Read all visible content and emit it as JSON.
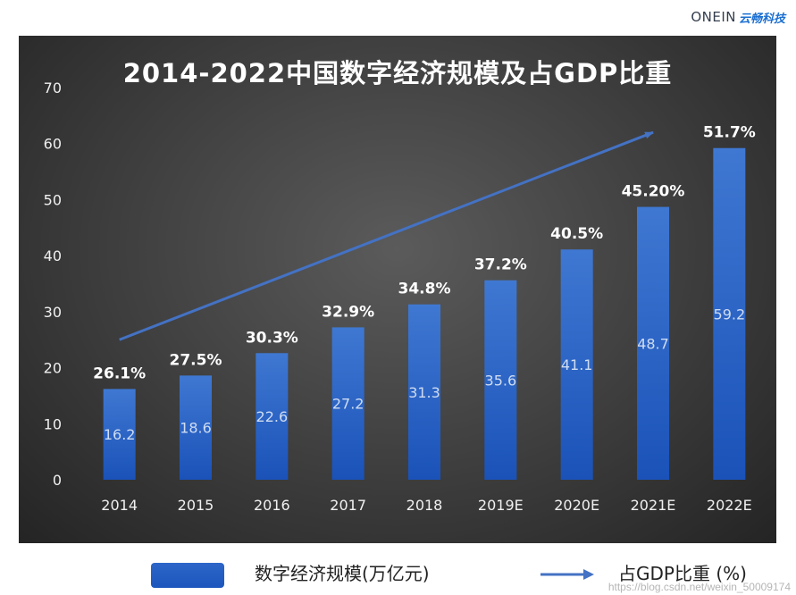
{
  "brand": {
    "en": "ONEIN",
    "cn": "云畅科技"
  },
  "watermark": "https://blog.csdn.net/weixin_50009174",
  "legend": {
    "bar_label": "数字经济规模(万亿元)",
    "line_label": "占GDP比重 (%)"
  },
  "colors": {
    "bar_top": "#3f78d2",
    "bar_bottom": "#1a52b8",
    "arrow": "#4472c4",
    "axis_text": "#f0f0f0",
    "value_text": "#cfdcf2",
    "pct_text": "#ffffff"
  },
  "chart_data": {
    "type": "bar",
    "title": "2014-2022中国数字经济规模及占GDP比重",
    "categories": [
      "2014",
      "2015",
      "2016",
      "2017",
      "2018",
      "2019E",
      "2020E",
      "2021E",
      "2022E"
    ],
    "series": [
      {
        "name": "数字经济规模(万亿元)",
        "values": [
          16.2,
          18.6,
          22.6,
          27.2,
          31.3,
          35.6,
          41.1,
          48.7,
          59.2
        ]
      }
    ],
    "value_labels": [
      "16.2",
      "18.6",
      "22.6",
      "27.2",
      "31.3",
      "35.6",
      "41.1",
      "48.7",
      "59.2"
    ],
    "share_labels": [
      "26.1%",
      "27.5%",
      "30.3%",
      "32.9%",
      "34.8%",
      "37.2%",
      "40.5%",
      "45.20%",
      "51.7%"
    ],
    "trend_arrow": {
      "from": [
        2014,
        25
      ],
      "to": [
        2021,
        62
      ]
    },
    "ylim": [
      0,
      70
    ],
    "yticks": [
      "0",
      "10",
      "20",
      "30",
      "40",
      "50",
      "60",
      "70"
    ],
    "xlabel": "",
    "ylabel": ""
  }
}
